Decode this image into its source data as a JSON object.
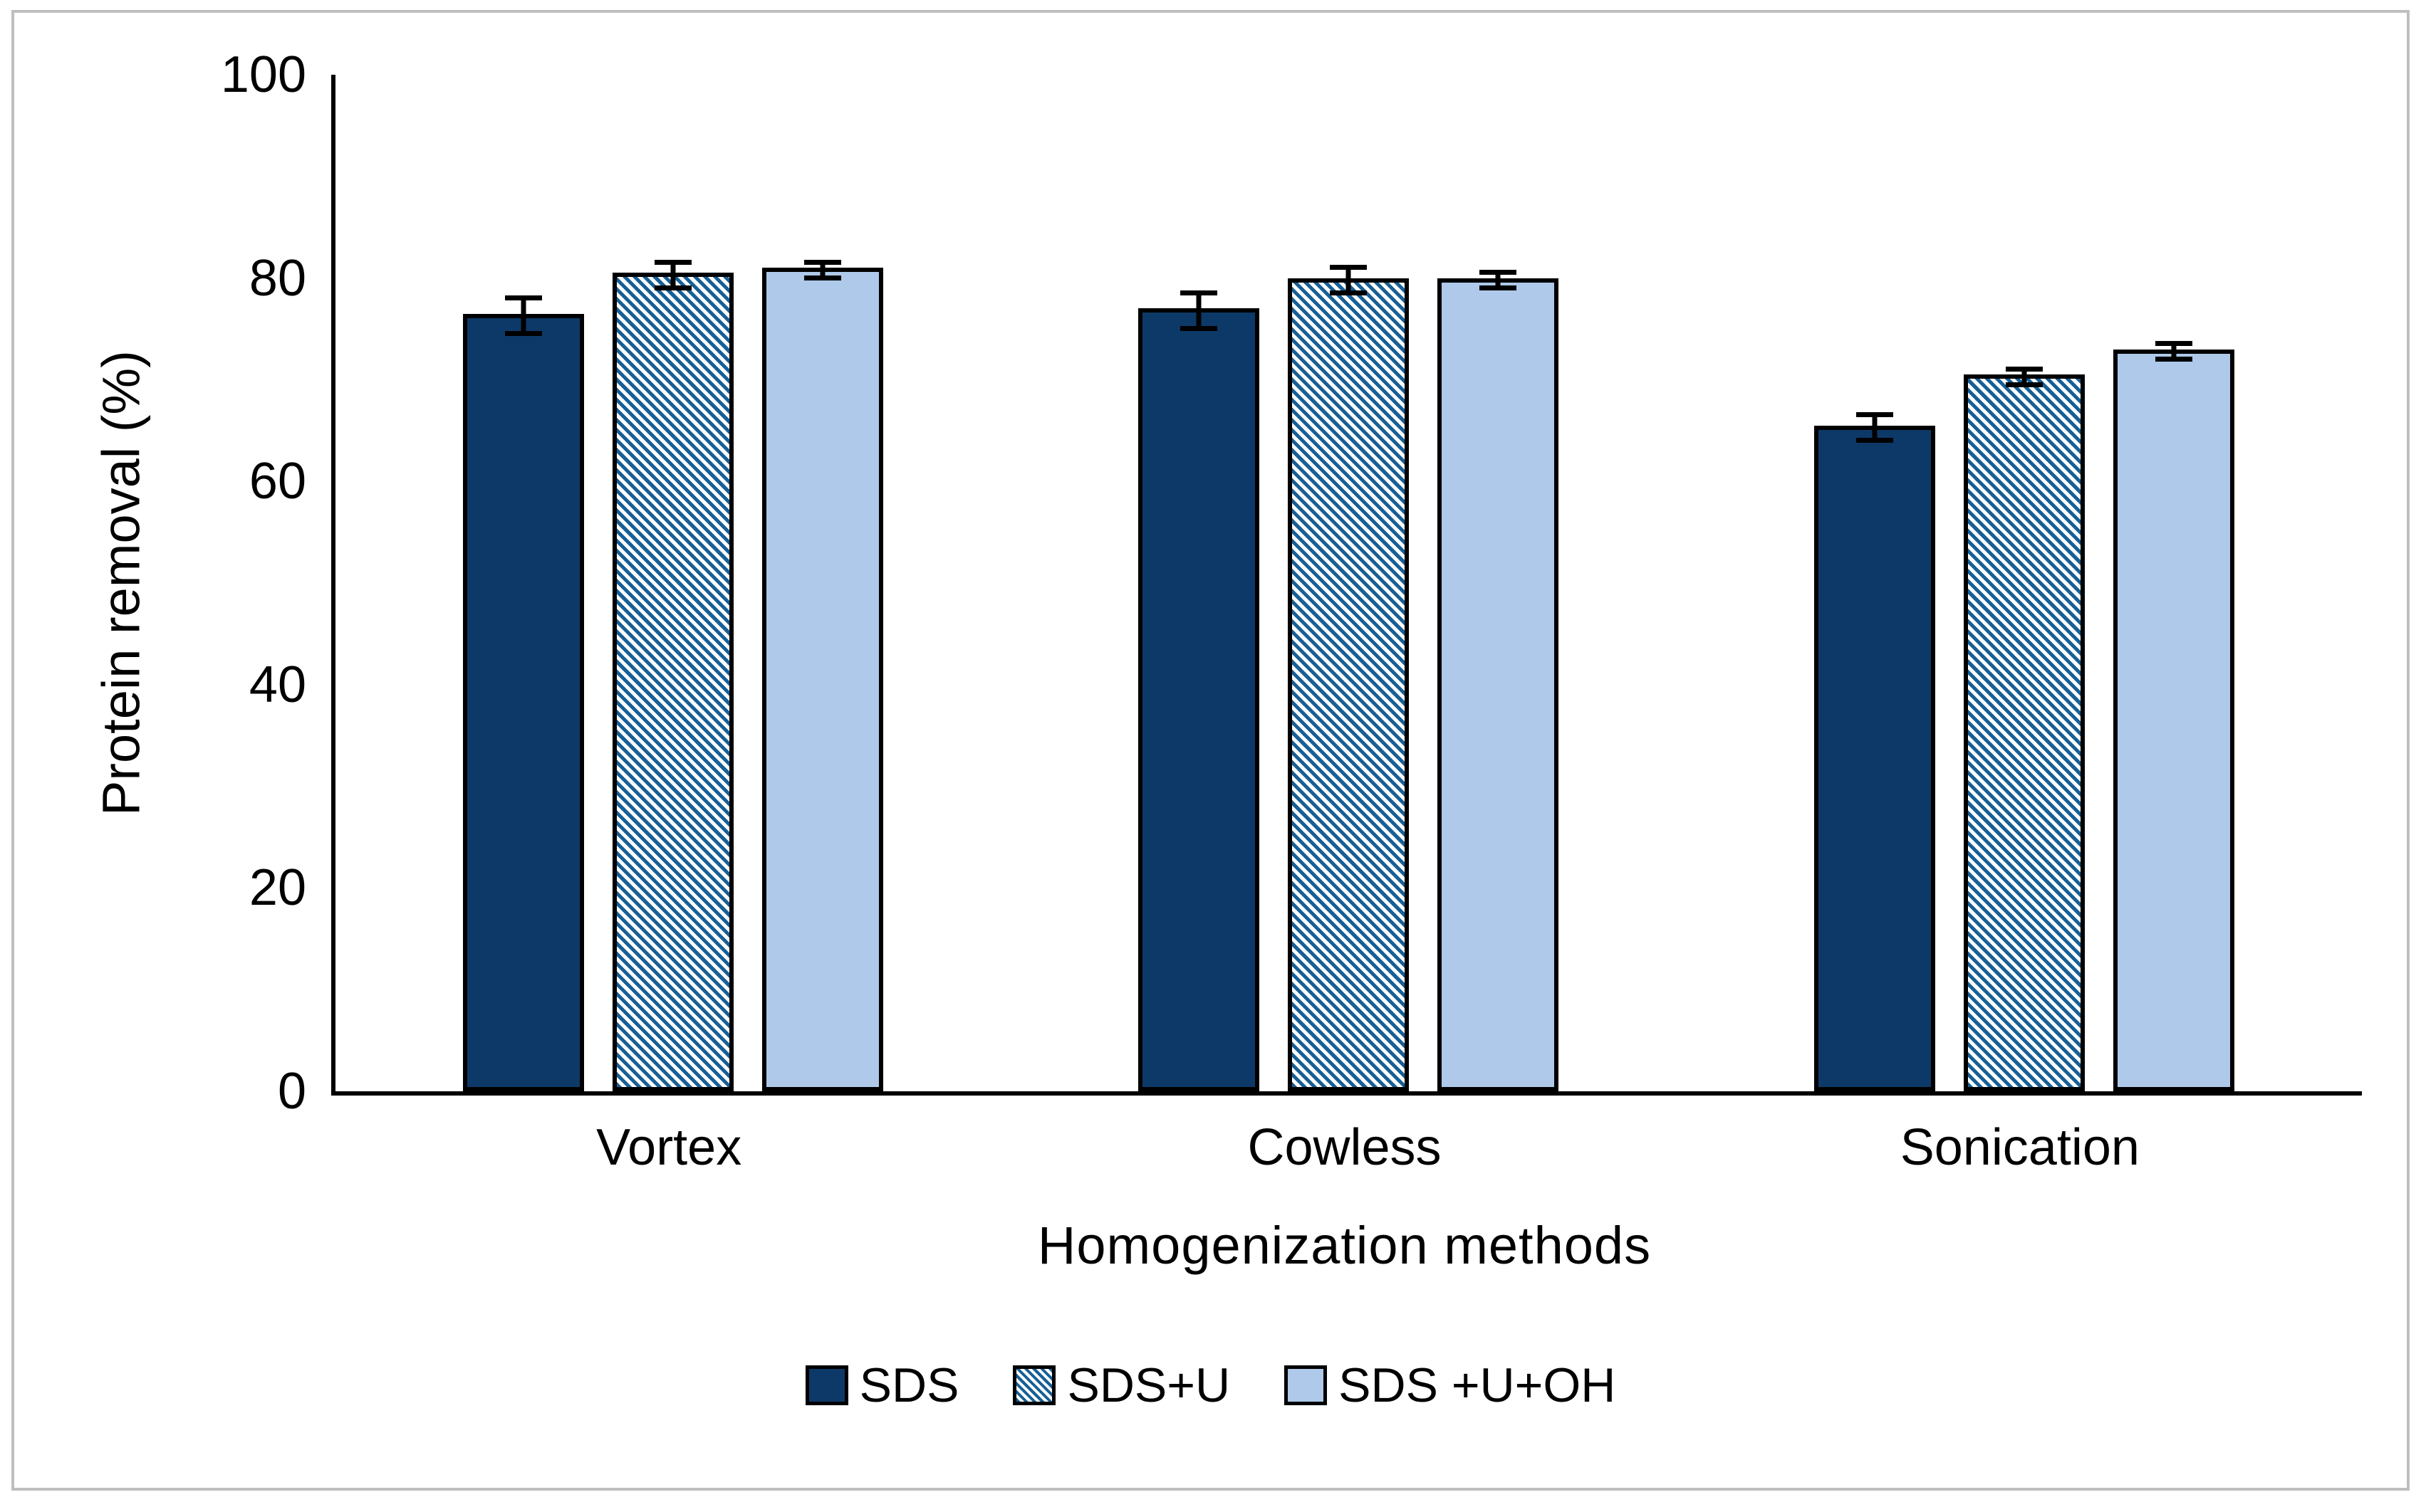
{
  "chart_data": {
    "type": "bar",
    "title": "",
    "xlabel": "Homogenization methods",
    "ylabel": "Protein removal (%)",
    "categories": [
      "Vortex",
      "Cowless",
      "Sonication"
    ],
    "series": [
      {
        "name": "SDS",
        "pattern": "solid",
        "color": "#0D3968",
        "values": [
          76.5,
          77,
          65.5
        ],
        "errors": [
          2,
          2,
          1.5
        ]
      },
      {
        "name": "SDS+U",
        "pattern": "diagonal-hatch",
        "color": "#175F96",
        "hatch_background": "#FFFFFF",
        "values": [
          80.5,
          80,
          70.5
        ],
        "errors": [
          1.5,
          1.5,
          1
        ]
      },
      {
        "name": "SDS +U+OH",
        "pattern": "solid",
        "color": "#AEC9E9",
        "values": [
          81,
          80,
          73
        ],
        "errors": [
          1,
          1,
          1
        ]
      }
    ],
    "ylim": [
      0,
      100
    ],
    "yticks": [
      0,
      20,
      40,
      60,
      80,
      100
    ],
    "grid": false,
    "error_bars": true,
    "legend_position": "bottom",
    "bar_outline_color": "#000000",
    "axis_color": "#000000",
    "frame_color": "#BFBFBF",
    "background_color": "#FFFFFF"
  }
}
